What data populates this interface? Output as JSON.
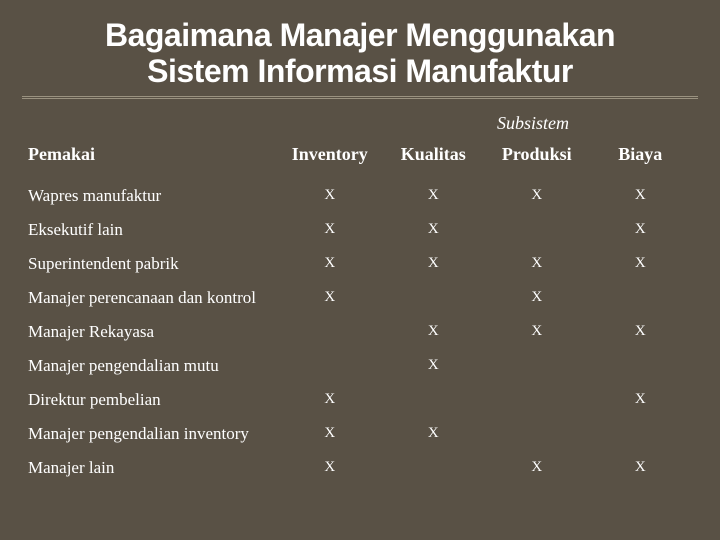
{
  "title_line1": "Bagaimana Manajer Menggunakan",
  "title_line2": "Sistem Informasi Manufaktur",
  "subheader": "Subsistem",
  "columns": {
    "user": "Pemakai",
    "c1": "Inventory",
    "c2": "Kualitas",
    "c3": "Produksi",
    "c4": "Biaya"
  },
  "rows": [
    {
      "label": "Wapres manufaktur",
      "c1": "X",
      "c2": "X",
      "c3": "X",
      "c4": "X"
    },
    {
      "label": "Eksekutif lain",
      "c1": "X",
      "c2": "X",
      "c3": "",
      "c4": "X"
    },
    {
      "label": "Superintendent pabrik",
      "c1": "X",
      "c2": "X",
      "c3": "X",
      "c4": "X"
    },
    {
      "label": "Manajer perencanaan dan kontrol",
      "c1": "X",
      "c2": "",
      "c3": "X",
      "c4": ""
    },
    {
      "label": "Manajer Rekayasa",
      "c1": "",
      "c2": "X",
      "c3": "X",
      "c4": "X"
    },
    {
      "label": "Manajer pengendalian mutu",
      "c1": "",
      "c2": "X",
      "c3": "",
      "c4": ""
    },
    {
      "label": "Direktur pembelian",
      "c1": "X",
      "c2": "",
      "c3": "",
      "c4": "X"
    },
    {
      "label": "Manajer pengendalian inventory",
      "c1": "X",
      "c2": "X",
      "c3": "",
      "c4": ""
    },
    {
      "label": "Manajer lain",
      "c1": "X",
      "c2": "",
      "c3": "X",
      "c4": "X"
    }
  ]
}
